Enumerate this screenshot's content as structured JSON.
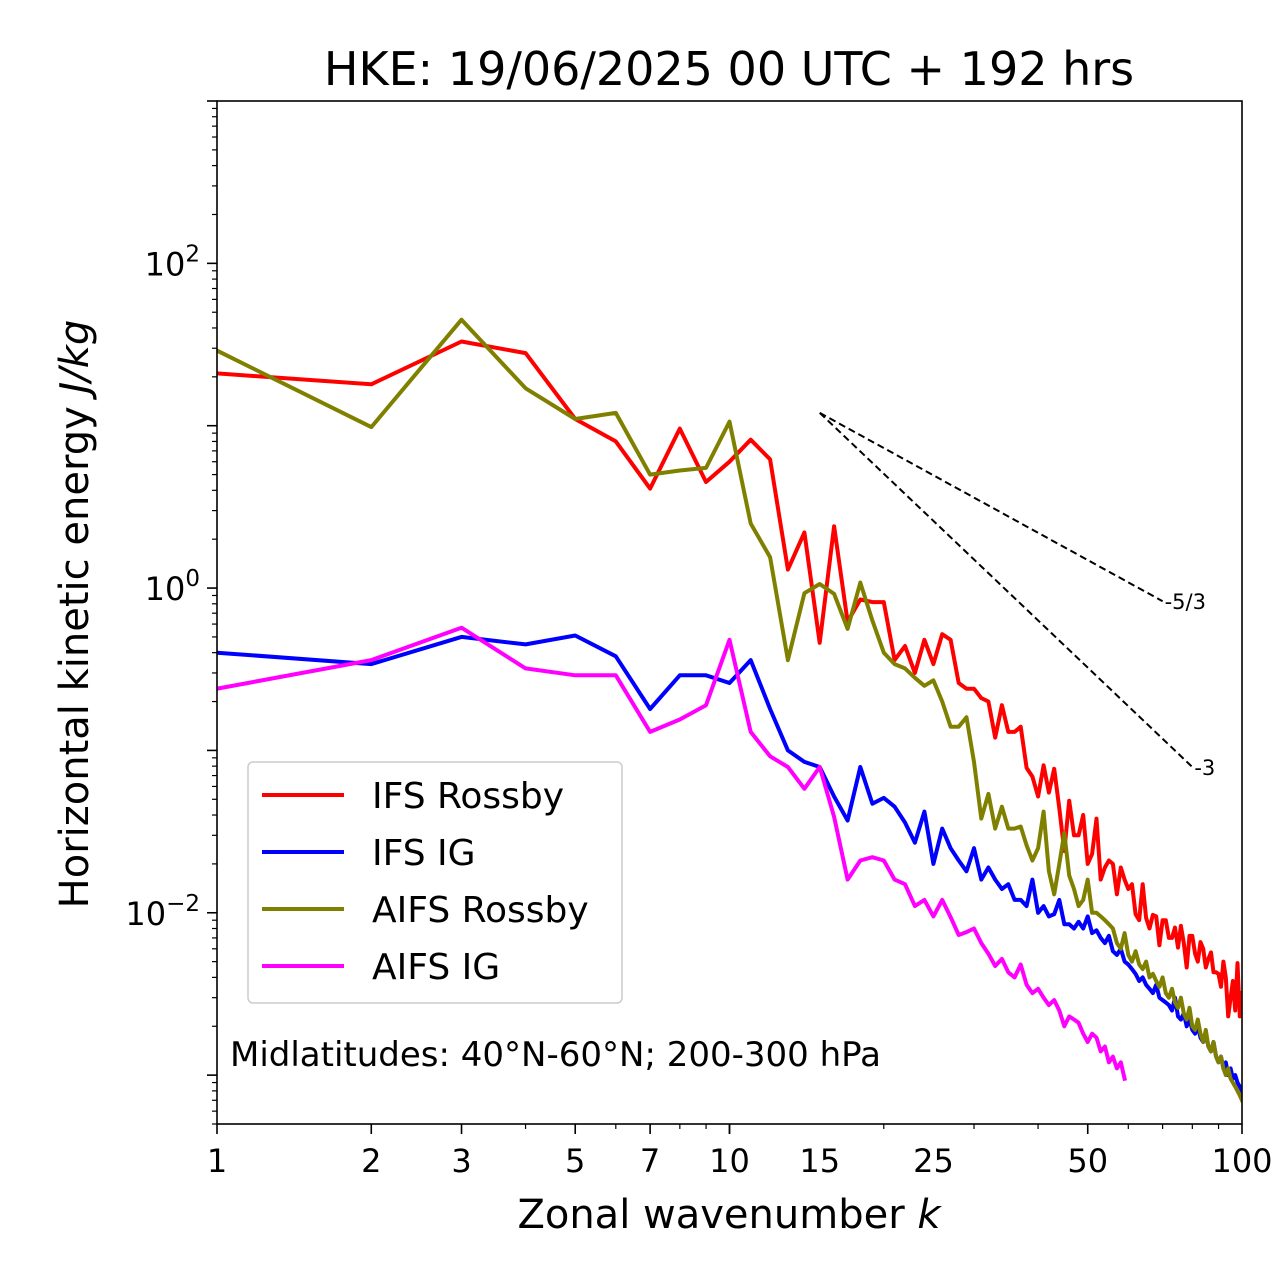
{
  "chart_data": {
    "type": "line",
    "title": "HKE: 19/06/2025 00 UTC + 192 hrs",
    "xlabel": "Zonal wavenumber",
    "xlabel_var": "k",
    "ylabel": "Horizontal kinetic energy",
    "ylabel_unit": "J/kg",
    "xscale": "log",
    "yscale": "log",
    "xlim": [
      1,
      100
    ],
    "ylim": [
      0.0005,
      1000
    ],
    "xticks": [
      {
        "value": 1,
        "label": "1"
      },
      {
        "value": 2,
        "label": "2"
      },
      {
        "value": 3,
        "label": "3"
      },
      {
        "value": 5,
        "label": "5"
      },
      {
        "value": 7,
        "label": "7"
      },
      {
        "value": 10,
        "label": "10"
      },
      {
        "value": 15,
        "label": "15"
      },
      {
        "value": 25,
        "label": "25"
      },
      {
        "value": 50,
        "label": "50"
      },
      {
        "value": 100,
        "label": "100"
      }
    ],
    "yticks": [
      {
        "value": 0.01,
        "base": "10",
        "exp": "−2"
      },
      {
        "value": 1,
        "base": "10",
        "exp": "0"
      },
      {
        "value": 100,
        "base": "10",
        "exp": "2"
      }
    ],
    "annotation": "Midlatitudes: 40°N-60°N; 200-300 hPa",
    "legend_position": "lower-left",
    "grid": false,
    "reference_lines": [
      {
        "label": "-5/3",
        "x": [
          15,
          70
        ],
        "y": [
          12.0,
          0.83
        ]
      },
      {
        "label": "-3",
        "x": [
          15,
          80
        ],
        "y": [
          12.0,
          0.079
        ]
      }
    ],
    "series": [
      {
        "name": "IFS Rossby",
        "color": "#ff0000",
        "x": [
          1,
          2,
          3,
          4,
          5,
          6,
          7,
          8,
          9,
          10,
          11,
          12,
          13,
          14,
          15,
          16,
          17,
          18,
          19,
          20,
          21,
          22,
          23,
          24,
          25,
          26,
          27,
          28,
          29,
          30,
          31,
          32,
          33,
          34,
          35,
          36,
          37,
          38,
          39,
          40,
          41,
          42,
          43,
          44,
          45,
          46,
          47,
          48,
          49,
          50,
          51,
          52,
          53,
          54,
          55,
          56,
          57,
          58,
          59,
          60,
          61,
          62,
          63,
          64,
          65,
          66,
          67,
          68,
          69,
          70,
          71,
          72,
          73,
          74,
          75,
          76,
          77,
          78,
          79,
          80,
          81,
          82,
          83,
          84,
          85,
          86,
          87,
          88,
          89,
          90,
          91,
          92,
          93,
          94,
          95,
          96,
          97,
          98,
          99,
          100
        ],
        "y": [
          21,
          18,
          33,
          28,
          11,
          8,
          4.1,
          9.6,
          4.5,
          6.0,
          8.2,
          6.2,
          1.3,
          2.2,
          0.46,
          2.4,
          0.62,
          0.85,
          0.82,
          0.82,
          0.36,
          0.44,
          0.3,
          0.48,
          0.34,
          0.52,
          0.48,
          0.26,
          0.24,
          0.24,
          0.21,
          0.2,
          0.12,
          0.19,
          0.13,
          0.13,
          0.14,
          0.078,
          0.069,
          0.052,
          0.081,
          0.055,
          0.077,
          0.044,
          0.024,
          0.049,
          0.03,
          0.03,
          0.04,
          0.02,
          0.023,
          0.038,
          0.016,
          0.019,
          0.021,
          0.02,
          0.013,
          0.019,
          0.016,
          0.014,
          0.015,
          0.0098,
          0.009,
          0.015,
          0.0093,
          0.008,
          0.0097,
          0.0095,
          0.0063,
          0.009,
          0.009,
          0.007,
          0.007,
          0.0081,
          0.0061,
          0.0083,
          0.0065,
          0.0046,
          0.0072,
          0.0072,
          0.0056,
          0.005,
          0.0066,
          0.006,
          0.0046,
          0.0052,
          0.0057,
          0.0043,
          0.0043,
          0.0042,
          0.0035,
          0.005,
          0.004,
          0.0023,
          0.003,
          0.0038,
          0.0025,
          0.0049,
          0.0023,
          0.0032
        ]
      },
      {
        "name": "IFS IG",
        "color": "#0000ff",
        "x": [
          1,
          2,
          3,
          4,
          5,
          6,
          7,
          8,
          9,
          10,
          11,
          12,
          13,
          14,
          15,
          16,
          17,
          18,
          19,
          20,
          21,
          22,
          23,
          24,
          25,
          26,
          27,
          28,
          29,
          30,
          31,
          32,
          33,
          34,
          35,
          36,
          37,
          38,
          39,
          40,
          41,
          42,
          43,
          44,
          45,
          46,
          47,
          48,
          49,
          50,
          51,
          52,
          53,
          54,
          55,
          56,
          57,
          58,
          59,
          60,
          61,
          62,
          63,
          64,
          65,
          66,
          67,
          68,
          69,
          70,
          71,
          72,
          73,
          74,
          75,
          76,
          77,
          78,
          79,
          80,
          81,
          82,
          83,
          84,
          85,
          86,
          87,
          88,
          89,
          90,
          91,
          92,
          93,
          94,
          95,
          96,
          97,
          98,
          99,
          100
        ],
        "y": [
          0.4,
          0.34,
          0.5,
          0.45,
          0.51,
          0.38,
          0.18,
          0.29,
          0.29,
          0.26,
          0.36,
          0.18,
          0.1,
          0.085,
          0.079,
          0.052,
          0.037,
          0.079,
          0.047,
          0.051,
          0.045,
          0.036,
          0.027,
          0.042,
          0.02,
          0.033,
          0.025,
          0.021,
          0.018,
          0.025,
          0.016,
          0.019,
          0.016,
          0.014,
          0.015,
          0.012,
          0.012,
          0.011,
          0.016,
          0.01,
          0.011,
          0.0095,
          0.0098,
          0.012,
          0.0085,
          0.0085,
          0.008,
          0.0088,
          0.008,
          0.0095,
          0.0075,
          0.0078,
          0.007,
          0.0065,
          0.0072,
          0.0058,
          0.0055,
          0.006,
          0.005,
          0.0048,
          0.0045,
          0.0042,
          0.0038,
          0.004,
          0.0036,
          0.0034,
          0.0032,
          0.0036,
          0.003,
          0.0029,
          0.0028,
          0.0027,
          0.0025,
          0.003,
          0.0023,
          0.0022,
          0.0024,
          0.002,
          0.0022,
          0.0019,
          0.0018,
          0.002,
          0.0017,
          0.0016,
          0.0018,
          0.0015,
          0.0014,
          0.0016,
          0.0013,
          0.0012,
          0.0013,
          0.0011,
          0.0012,
          0.001,
          0.0011,
          0.00095,
          0.001,
          0.0009,
          0.00085,
          0.0008
        ]
      },
      {
        "name": "AIFS Rossby",
        "color": "#808000",
        "x": [
          1,
          2,
          3,
          4,
          5,
          6,
          7,
          8,
          9,
          10,
          11,
          12,
          13,
          14,
          15,
          16,
          17,
          18,
          19,
          20,
          21,
          22,
          23,
          24,
          25,
          26,
          27,
          28,
          29,
          30,
          31,
          32,
          33,
          34,
          35,
          36,
          37,
          38,
          39,
          40,
          41,
          42,
          43,
          44,
          45,
          46,
          47,
          48,
          49,
          50,
          51,
          52,
          53,
          54,
          55,
          56,
          57,
          58,
          59,
          60,
          61,
          62,
          63,
          64,
          65,
          66,
          67,
          68,
          69,
          70,
          71,
          72,
          73,
          74,
          75,
          76,
          77,
          78,
          79,
          80,
          81,
          82,
          83,
          84,
          85,
          86,
          87,
          88,
          89,
          90,
          91,
          92,
          93,
          94,
          95,
          96,
          97,
          98,
          99,
          100
        ],
        "y": [
          29,
          9.8,
          45,
          17,
          11,
          12,
          5.0,
          5.3,
          5.5,
          10.6,
          2.5,
          1.55,
          0.36,
          0.93,
          1.06,
          0.92,
          0.56,
          1.08,
          0.63,
          0.4,
          0.34,
          0.32,
          0.28,
          0.25,
          0.27,
          0.2,
          0.14,
          0.14,
          0.16,
          0.085,
          0.038,
          0.054,
          0.033,
          0.045,
          0.033,
          0.033,
          0.034,
          0.026,
          0.021,
          0.025,
          0.042,
          0.018,
          0.013,
          0.02,
          0.031,
          0.017,
          0.014,
          0.011,
          0.012,
          0.016,
          0.01,
          0.01,
          0.0095,
          0.009,
          0.0085,
          0.008,
          0.0065,
          0.006,
          0.0075,
          0.0055,
          0.005,
          0.0058,
          0.0048,
          0.0045,
          0.005,
          0.004,
          0.0042,
          0.0038,
          0.0035,
          0.004,
          0.0032,
          0.003,
          0.0034,
          0.0028,
          0.0026,
          0.003,
          0.0024,
          0.0022,
          0.0026,
          0.002,
          0.0019,
          0.0022,
          0.0018,
          0.0016,
          0.0019,
          0.0015,
          0.0014,
          0.0016,
          0.0013,
          0.0012,
          0.0013,
          0.0011,
          0.001,
          0.0011,
          0.00095,
          0.0009,
          0.00085,
          0.0008,
          0.00075,
          0.0007
        ]
      },
      {
        "name": "AIFS IG",
        "color": "#ff00ff",
        "x": [
          1,
          2,
          3,
          4,
          5,
          6,
          7,
          8,
          9,
          10,
          11,
          12,
          13,
          14,
          15,
          16,
          17,
          18,
          19,
          20,
          21,
          22,
          23,
          24,
          25,
          26,
          27,
          28,
          29,
          30,
          31,
          32,
          33,
          34,
          35,
          36,
          37,
          38,
          39,
          40,
          41,
          42,
          43,
          44,
          45,
          46,
          47,
          48,
          49,
          50,
          51,
          52,
          53,
          54,
          55,
          56,
          57,
          58,
          59
        ],
        "y": [
          0.24,
          0.36,
          0.57,
          0.32,
          0.29,
          0.29,
          0.13,
          0.155,
          0.19,
          0.48,
          0.13,
          0.092,
          0.079,
          0.058,
          0.079,
          0.039,
          0.016,
          0.021,
          0.022,
          0.021,
          0.016,
          0.015,
          0.011,
          0.012,
          0.0095,
          0.012,
          0.0094,
          0.0073,
          0.0076,
          0.008,
          0.0065,
          0.0056,
          0.0047,
          0.0052,
          0.0043,
          0.004,
          0.0048,
          0.0036,
          0.0032,
          0.0034,
          0.003,
          0.0027,
          0.0029,
          0.0025,
          0.002,
          0.0023,
          0.0022,
          0.0021,
          0.0018,
          0.0016,
          0.0018,
          0.0017,
          0.0014,
          0.0015,
          0.0012,
          0.0013,
          0.0011,
          0.0012,
          0.00095
        ]
      }
    ]
  }
}
